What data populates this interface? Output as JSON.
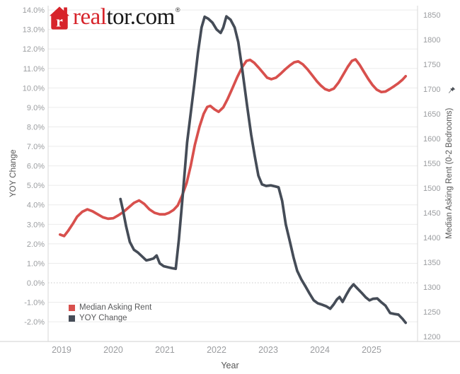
{
  "logo": {
    "brand_red_text": "real",
    "brand_dark_text": "tor.com",
    "registered_mark": "®",
    "red": "#d7232a"
  },
  "chart_data": {
    "type": "line",
    "grid": true,
    "title": "",
    "x_axis": {
      "title": "Year",
      "ticks": [
        2019,
        2020,
        2021,
        2022,
        2023,
        2024,
        2025
      ],
      "domain": [
        2018.74,
        2025.89
      ]
    },
    "y_left": {
      "title": "YOY Change",
      "tick_labels": [
        "14.0%",
        "13.0%",
        "12.0%",
        "11.0%",
        "10.0%",
        "9.0%",
        "8.0%",
        "7.0%",
        "6.0%",
        "5.0%",
        "4.0%",
        "3.0%",
        "2.0%",
        "1.0%",
        "0.0%",
        "-1.0%",
        "-2.0%"
      ],
      "tick_values": [
        14,
        13,
        12,
        11,
        10,
        9,
        8,
        7,
        6,
        5,
        4,
        3,
        2,
        1,
        0,
        -1,
        -2
      ],
      "domain": [
        -3.01,
        14.22
      ],
      "zero_line_style": "dotted"
    },
    "y_right": {
      "title": "Median Asking Rent (0-2 Bedrooms)",
      "tick_values": [
        1850,
        1800,
        1750,
        1700,
        1650,
        1600,
        1550,
        1500,
        1450,
        1400,
        1350,
        1300,
        1250,
        1200
      ],
      "domain": [
        1190,
        1868.6
      ],
      "pinned": true
    },
    "legend": {
      "position": "inside-bottom-left",
      "items": [
        {
          "label": "Median Asking Rent",
          "color": "#d8504d"
        },
        {
          "label": "YOY Change",
          "color": "#454c57"
        }
      ]
    },
    "series": [
      {
        "name": "Median Asking Rent",
        "axis": "right",
        "color": "#d8504d",
        "points": [
          [
            2018.97,
            1406
          ],
          [
            2019.05,
            1403
          ],
          [
            2019.13,
            1414
          ],
          [
            2019.22,
            1428
          ],
          [
            2019.3,
            1442
          ],
          [
            2019.4,
            1452
          ],
          [
            2019.5,
            1457
          ],
          [
            2019.6,
            1453
          ],
          [
            2019.7,
            1447
          ],
          [
            2019.8,
            1441
          ],
          [
            2019.9,
            1438
          ],
          [
            2020.0,
            1439
          ],
          [
            2020.1,
            1445
          ],
          [
            2020.2,
            1452
          ],
          [
            2020.3,
            1461
          ],
          [
            2020.4,
            1470
          ],
          [
            2020.5,
            1475
          ],
          [
            2020.6,
            1468
          ],
          [
            2020.7,
            1457
          ],
          [
            2020.8,
            1450
          ],
          [
            2020.9,
            1447
          ],
          [
            2021.0,
            1447
          ],
          [
            2021.08,
            1450
          ],
          [
            2021.17,
            1456
          ],
          [
            2021.25,
            1465
          ],
          [
            2021.33,
            1484
          ],
          [
            2021.42,
            1510
          ],
          [
            2021.5,
            1545
          ],
          [
            2021.58,
            1587
          ],
          [
            2021.67,
            1624
          ],
          [
            2021.75,
            1650
          ],
          [
            2021.82,
            1664
          ],
          [
            2021.88,
            1666
          ],
          [
            2021.96,
            1659
          ],
          [
            2022.04,
            1654
          ],
          [
            2022.13,
            1663
          ],
          [
            2022.21,
            1679
          ],
          [
            2022.3,
            1700
          ],
          [
            2022.4,
            1724
          ],
          [
            2022.5,
            1745
          ],
          [
            2022.58,
            1757
          ],
          [
            2022.65,
            1759
          ],
          [
            2022.73,
            1753
          ],
          [
            2022.81,
            1744
          ],
          [
            2022.9,
            1733
          ],
          [
            2022.98,
            1723
          ],
          [
            2023.06,
            1720
          ],
          [
            2023.15,
            1723
          ],
          [
            2023.24,
            1731
          ],
          [
            2023.33,
            1740
          ],
          [
            2023.42,
            1748
          ],
          [
            2023.5,
            1754
          ],
          [
            2023.58,
            1756
          ],
          [
            2023.67,
            1750
          ],
          [
            2023.76,
            1740
          ],
          [
            2023.85,
            1728
          ],
          [
            2023.94,
            1716
          ],
          [
            2024.02,
            1707
          ],
          [
            2024.1,
            1700
          ],
          [
            2024.18,
            1697
          ],
          [
            2024.27,
            1701
          ],
          [
            2024.36,
            1713
          ],
          [
            2024.45,
            1729
          ],
          [
            2024.54,
            1745
          ],
          [
            2024.62,
            1757
          ],
          [
            2024.69,
            1760
          ],
          [
            2024.77,
            1749
          ],
          [
            2024.85,
            1735
          ],
          [
            2024.94,
            1720
          ],
          [
            2025.02,
            1708
          ],
          [
            2025.1,
            1699
          ],
          [
            2025.19,
            1694
          ],
          [
            2025.27,
            1695
          ],
          [
            2025.35,
            1700
          ],
          [
            2025.44,
            1706
          ],
          [
            2025.52,
            1712
          ],
          [
            2025.6,
            1719
          ],
          [
            2025.66,
            1726
          ]
        ]
      },
      {
        "name": "YOY Change",
        "axis": "left",
        "color": "#454c57",
        "points": [
          [
            2020.14,
            4.3
          ],
          [
            2020.19,
            3.7
          ],
          [
            2020.25,
            2.9
          ],
          [
            2020.32,
            2.1
          ],
          [
            2020.4,
            1.7
          ],
          [
            2020.48,
            1.55
          ],
          [
            2020.56,
            1.35
          ],
          [
            2020.64,
            1.15
          ],
          [
            2020.72,
            1.2
          ],
          [
            2020.78,
            1.25
          ],
          [
            2020.84,
            1.4
          ],
          [
            2020.9,
            1.0
          ],
          [
            2020.98,
            0.85
          ],
          [
            2021.06,
            0.8
          ],
          [
            2021.14,
            0.75
          ],
          [
            2021.21,
            0.72
          ],
          [
            2021.27,
            2.2
          ],
          [
            2021.35,
            4.6
          ],
          [
            2021.43,
            7.2
          ],
          [
            2021.5,
            8.7
          ],
          [
            2021.57,
            10.2
          ],
          [
            2021.64,
            11.8
          ],
          [
            2021.71,
            13.1
          ],
          [
            2021.77,
            13.65
          ],
          [
            2021.84,
            13.55
          ],
          [
            2021.92,
            13.35
          ],
          [
            2022.0,
            13.0
          ],
          [
            2022.08,
            12.82
          ],
          [
            2022.13,
            13.1
          ],
          [
            2022.19,
            13.67
          ],
          [
            2022.27,
            13.5
          ],
          [
            2022.35,
            13.1
          ],
          [
            2022.42,
            12.35
          ],
          [
            2022.5,
            10.9
          ],
          [
            2022.59,
            9.1
          ],
          [
            2022.67,
            7.6
          ],
          [
            2022.74,
            6.5
          ],
          [
            2022.81,
            5.5
          ],
          [
            2022.88,
            5.05
          ],
          [
            2022.96,
            4.97
          ],
          [
            2023.05,
            5.0
          ],
          [
            2023.13,
            4.95
          ],
          [
            2023.2,
            4.9
          ],
          [
            2023.27,
            4.2
          ],
          [
            2023.34,
            3.0
          ],
          [
            2023.42,
            2.1
          ],
          [
            2023.49,
            1.3
          ],
          [
            2023.56,
            0.62
          ],
          [
            2023.64,
            0.18
          ],
          [
            2023.72,
            -0.18
          ],
          [
            2023.8,
            -0.55
          ],
          [
            2023.88,
            -0.9
          ],
          [
            2023.96,
            -1.05
          ],
          [
            2024.04,
            -1.12
          ],
          [
            2024.12,
            -1.2
          ],
          [
            2024.2,
            -1.33
          ],
          [
            2024.27,
            -1.1
          ],
          [
            2024.33,
            -0.85
          ],
          [
            2024.38,
            -0.73
          ],
          [
            2024.44,
            -0.98
          ],
          [
            2024.51,
            -0.62
          ],
          [
            2024.58,
            -0.3
          ],
          [
            2024.65,
            -0.08
          ],
          [
            2024.73,
            -0.3
          ],
          [
            2024.81,
            -0.52
          ],
          [
            2024.89,
            -0.75
          ],
          [
            2024.96,
            -0.9
          ],
          [
            2025.03,
            -0.82
          ],
          [
            2025.11,
            -0.8
          ],
          [
            2025.19,
            -1.0
          ],
          [
            2025.27,
            -1.17
          ],
          [
            2025.36,
            -1.55
          ],
          [
            2025.44,
            -1.6
          ],
          [
            2025.52,
            -1.63
          ],
          [
            2025.6,
            -1.85
          ],
          [
            2025.66,
            -2.05
          ]
        ]
      }
    ]
  }
}
